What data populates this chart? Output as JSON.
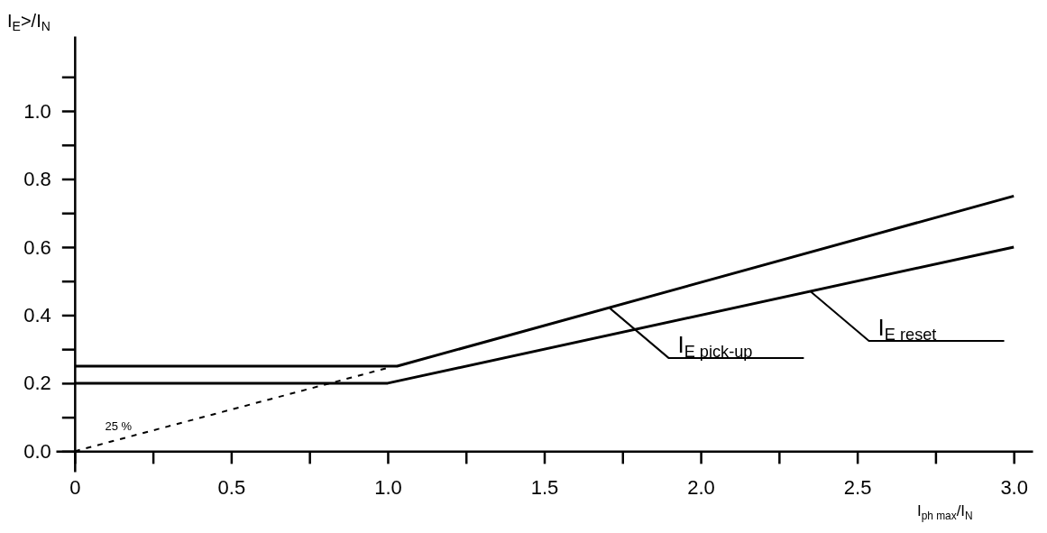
{
  "chart_data": {
    "type": "line",
    "xlabel": "I$_{ph max}$/I$_{N}$",
    "ylabel": "I$_{E}$>/I$_{N}$",
    "xlim": [
      -0.06,
      3.06
    ],
    "ylim": [
      -0.06,
      1.22
    ],
    "xticks": [
      {
        "value": 0,
        "label": "0"
      },
      {
        "value": 0.25,
        "label": null
      },
      {
        "value": 0.5,
        "label": "0.5"
      },
      {
        "value": 0.75,
        "label": null
      },
      {
        "value": 1,
        "label": "1.0"
      },
      {
        "value": 1.25,
        "label": null
      },
      {
        "value": 1.5,
        "label": "1.5"
      },
      {
        "value": 1.75,
        "label": null
      },
      {
        "value": 2,
        "label": "2.0"
      },
      {
        "value": 2.25,
        "label": null
      },
      {
        "value": 2.5,
        "label": "2.5"
      },
      {
        "value": 2.75,
        "label": null
      },
      {
        "value": 3,
        "label": "3.0"
      }
    ],
    "yticks": [
      {
        "value": 0,
        "label": "0.0"
      },
      {
        "value": 0.1,
        "label": null
      },
      {
        "value": 0.2,
        "label": "0.2"
      },
      {
        "value": 0.3,
        "label": null
      },
      {
        "value": 0.4,
        "label": "0.4"
      },
      {
        "value": 0.5,
        "label": null
      },
      {
        "value": 0.6,
        "label": "0.6"
      },
      {
        "value": 0.7,
        "label": null
      },
      {
        "value": 0.8,
        "label": "0.8"
      },
      {
        "value": 0.9,
        "label": null
      },
      {
        "value": 1,
        "label": "1.0"
      },
      {
        "value": 1.1,
        "label": null
      }
    ],
    "grid": false,
    "marker": "none",
    "series": [
      {
        "color": "#000000",
        "x": [
          0,
          1.03,
          3.0
        ],
        "values": [
          0.25,
          0.25,
          0.75
        ]
      },
      {
        "color": "#000000",
        "x": [
          0,
          1.0,
          3.0
        ],
        "values": [
          0.2,
          0.2,
          0.6
        ]
      },
      {
        "color": "#000000",
        "x": [
          0,
          1.0
        ],
        "values": [
          0,
          0.245
        ],
        "line_style": "dashed"
      }
    ],
    "annotations": [
      {
        "text": "I$_{E pick‑up}$",
        "x": 1.71,
        "y": 0.42
      },
      {
        "text": "I$_{E reset}$",
        "x": 2.35,
        "y": 0.47
      },
      "25 %"
    ]
  }
}
